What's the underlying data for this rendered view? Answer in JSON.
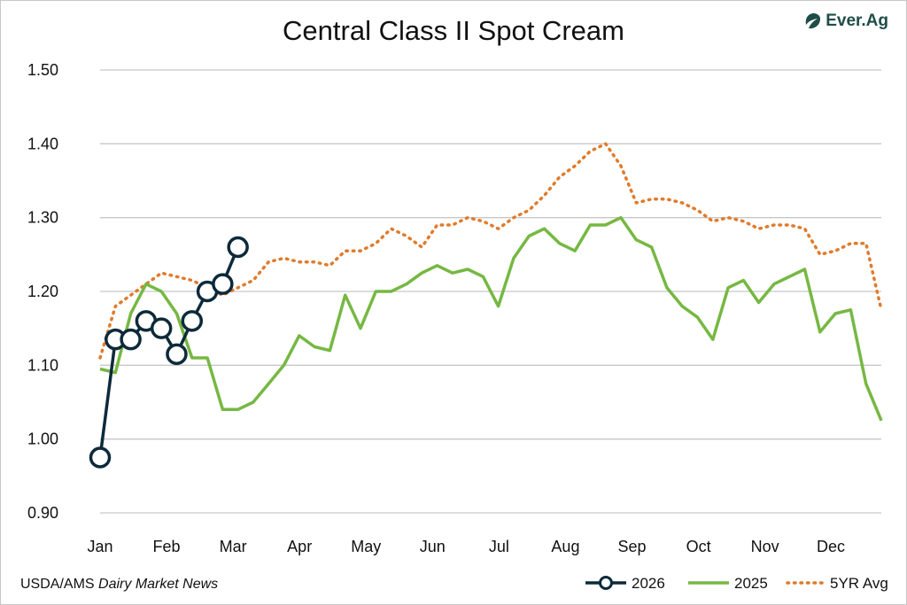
{
  "header": {
    "title": "Central Class II Spot Cream"
  },
  "logo": {
    "text": "Ever.Ag",
    "icon": "ever-ag-leaf-icon",
    "color": "#1e4d47"
  },
  "footer": {
    "source_prefix": "USDA/AMS",
    "source_italic": "Dairy Market News"
  },
  "chart_data": {
    "type": "line",
    "title": "Central Class II Spot Cream",
    "xlabel": "",
    "ylabel": "",
    "ylim": [
      0.9,
      1.5
    ],
    "yticks": [
      "0.90",
      "1.00",
      "1.10",
      "1.20",
      "1.30",
      "1.40",
      "1.50"
    ],
    "grid": true,
    "legend_position": "bottom-right",
    "categories": [
      "Jan",
      "Feb",
      "Mar",
      "Apr",
      "May",
      "Jun",
      "Jul",
      "Aug",
      "Sep",
      "Oct",
      "Nov",
      "Dec"
    ],
    "x_unit": "week of year (1-52)",
    "series": [
      {
        "name": "2026",
        "color": "#0d2a3a",
        "style": "line-markers",
        "x": [
          1,
          2,
          3,
          4,
          5,
          6,
          7,
          8,
          9,
          10
        ],
        "values": [
          0.975,
          1.135,
          1.135,
          1.16,
          1.15,
          1.115,
          1.16,
          1.2,
          1.21,
          1.26
        ]
      },
      {
        "name": "2025",
        "color": "#76b843",
        "style": "solid",
        "x": [
          1,
          2,
          3,
          4,
          5,
          6,
          7,
          8,
          9,
          10,
          11,
          12,
          13,
          14,
          15,
          16,
          17,
          18,
          19,
          20,
          21,
          22,
          23,
          24,
          25,
          26,
          27,
          28,
          29,
          30,
          31,
          32,
          33,
          34,
          35,
          36,
          37,
          38,
          39,
          40,
          41,
          42,
          43,
          44,
          45,
          46,
          47,
          48,
          49,
          50,
          51,
          52
        ],
        "values": [
          1.095,
          1.09,
          1.17,
          1.21,
          1.2,
          1.17,
          1.11,
          1.11,
          1.04,
          1.04,
          1.05,
          1.075,
          1.1,
          1.14,
          1.125,
          1.12,
          1.195,
          1.15,
          1.2,
          1.2,
          1.21,
          1.225,
          1.235,
          1.225,
          1.23,
          1.22,
          1.18,
          1.245,
          1.275,
          1.285,
          1.265,
          1.255,
          1.29,
          1.29,
          1.3,
          1.27,
          1.26,
          1.205,
          1.18,
          1.165,
          1.135,
          1.205,
          1.215,
          1.185,
          1.21,
          1.22,
          1.23,
          1.145,
          1.17,
          1.175,
          1.075,
          1.025
        ]
      },
      {
        "name": "5YR Avg",
        "color": "#e07b2c",
        "style": "dotted",
        "x": [
          1,
          2,
          3,
          4,
          5,
          6,
          7,
          8,
          9,
          10,
          11,
          12,
          13,
          14,
          15,
          16,
          17,
          18,
          19,
          20,
          21,
          22,
          23,
          24,
          25,
          26,
          27,
          28,
          29,
          30,
          31,
          32,
          33,
          34,
          35,
          36,
          37,
          38,
          39,
          40,
          41,
          42,
          43,
          44,
          45,
          46,
          47,
          48,
          49,
          50,
          51,
          52
        ],
        "values": [
          1.11,
          1.18,
          1.195,
          1.21,
          1.225,
          1.22,
          1.215,
          1.205,
          1.195,
          1.205,
          1.215,
          1.24,
          1.245,
          1.24,
          1.24,
          1.235,
          1.255,
          1.255,
          1.265,
          1.285,
          1.275,
          1.26,
          1.29,
          1.29,
          1.3,
          1.295,
          1.285,
          1.3,
          1.31,
          1.33,
          1.355,
          1.37,
          1.39,
          1.4,
          1.37,
          1.32,
          1.325,
          1.325,
          1.32,
          1.31,
          1.295,
          1.3,
          1.295,
          1.285,
          1.29,
          1.29,
          1.285,
          1.25,
          1.255,
          1.265,
          1.265,
          1.175
        ]
      }
    ]
  }
}
